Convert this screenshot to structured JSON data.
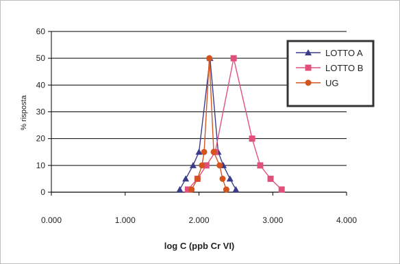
{
  "chart_data": {
    "type": "line",
    "title": "",
    "xlabel": "log C (ppb Cr VI)",
    "ylabel": "% risposta",
    "xlim": [
      0,
      4
    ],
    "ylim": [
      0,
      60
    ],
    "x_ticks": [
      "0.000",
      "1.000",
      "2.000",
      "3.000",
      "4.000"
    ],
    "y_ticks": [
      "0",
      "10",
      "20",
      "30",
      "40",
      "50",
      "60"
    ],
    "grid": "horizontal",
    "legend_position": "top-right",
    "series": [
      {
        "name": "LOTTO A",
        "color": "#3b3b8c",
        "marker": "triangle",
        "points": [
          [
            1.74,
            1
          ],
          [
            1.82,
            5
          ],
          [
            1.92,
            10
          ],
          [
            2.0,
            15
          ],
          [
            2.15,
            50
          ],
          [
            2.26,
            15
          ],
          [
            2.33,
            10
          ],
          [
            2.42,
            5
          ],
          [
            2.5,
            1
          ]
        ]
      },
      {
        "name": "LOTTO B",
        "color": "#e0507a",
        "marker": "square",
        "points": [
          [
            1.85,
            1
          ],
          [
            1.98,
            5
          ],
          [
            2.1,
            10
          ],
          [
            2.22,
            15
          ],
          [
            2.47,
            50
          ],
          [
            2.72,
            20
          ],
          [
            2.83,
            10
          ],
          [
            2.97,
            5
          ],
          [
            3.12,
            1
          ]
        ]
      },
      {
        "name": "UG",
        "color": "#d4531f",
        "marker": "circle",
        "points": [
          [
            1.9,
            1
          ],
          [
            1.98,
            5
          ],
          [
            2.04,
            10
          ],
          [
            2.07,
            15
          ],
          [
            2.14,
            50
          ],
          [
            2.2,
            15
          ],
          [
            2.28,
            10
          ],
          [
            2.32,
            5
          ],
          [
            2.37,
            1
          ]
        ]
      }
    ]
  }
}
